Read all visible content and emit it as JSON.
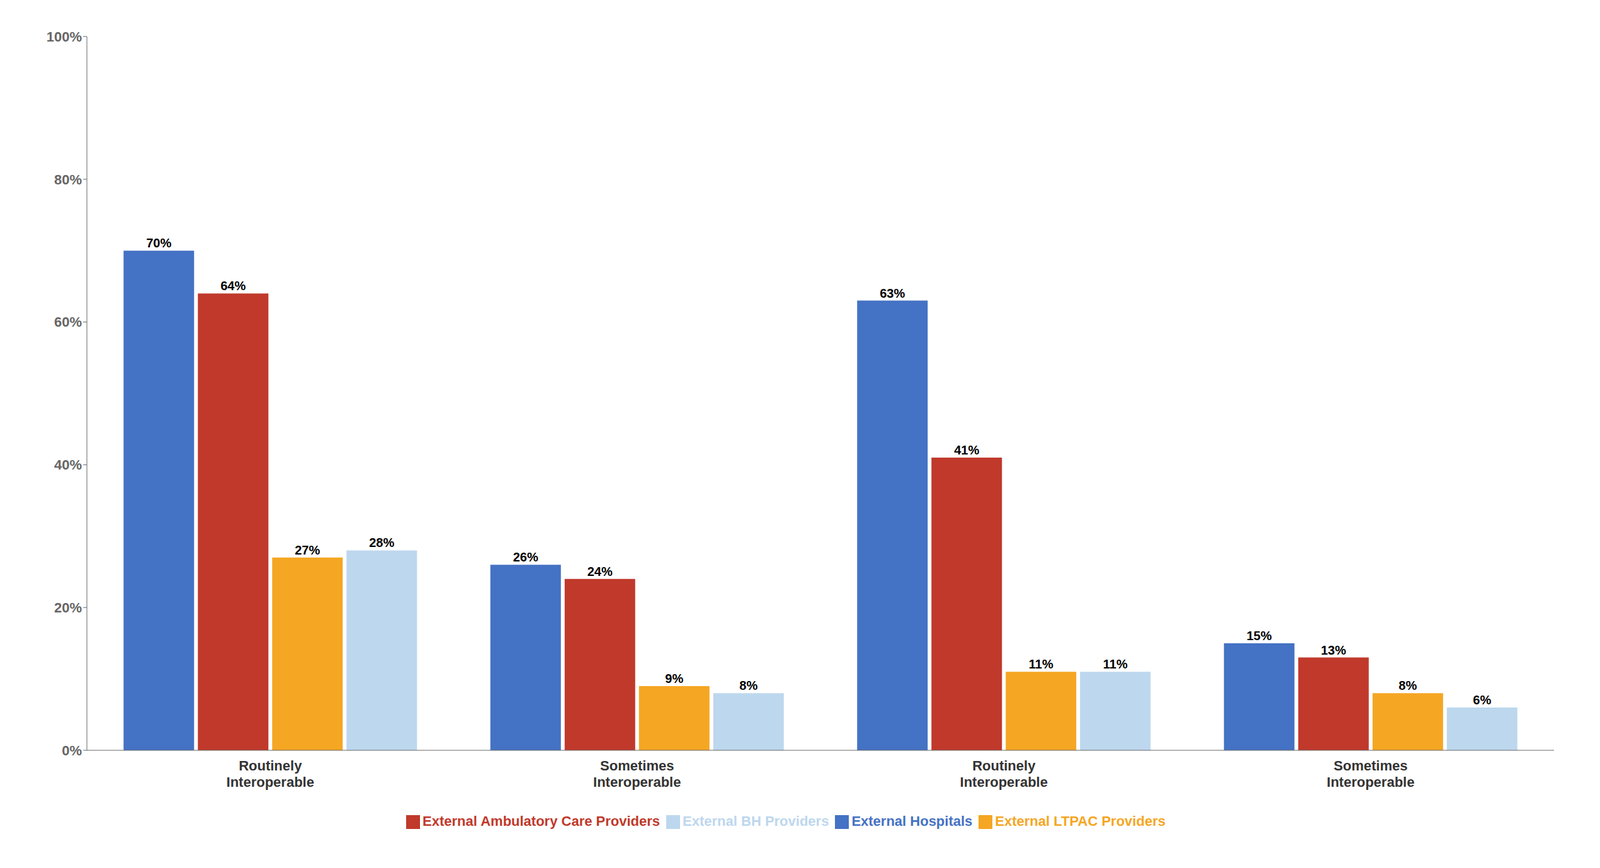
{
  "chart_data": {
    "type": "bar",
    "categories": [
      "Routinely\nInteroperable",
      "Sometimes\nInteroperable",
      "Routinely\nInteroperable",
      "Sometimes\nInteroperable"
    ],
    "series": [
      {
        "name": "External Hospitals",
        "color": "#4472C4",
        "values": [
          70,
          26,
          63,
          15
        ],
        "value_labels": [
          "70%",
          "26%",
          "63%",
          "15%"
        ]
      },
      {
        "name": "External Ambulatory Care Providers",
        "color": "#C0392B",
        "values": [
          64,
          24,
          41,
          13
        ],
        "value_labels": [
          "64%",
          "24%",
          "41%",
          "13%"
        ]
      },
      {
        "name": "External LTPAC Providers",
        "color": "#F5A623",
        "values": [
          27,
          9,
          11,
          8
        ],
        "value_labels": [
          "27%",
          "9%",
          "11%",
          "8%"
        ]
      },
      {
        "name": "External BH Providers",
        "color": "#BDD7EE",
        "values": [
          28,
          8,
          11,
          6
        ],
        "value_labels": [
          "28%",
          "8%",
          "11%",
          "6%"
        ]
      }
    ],
    "ylim": [
      0,
      100
    ],
    "yticks": [
      {
        "value": 0,
        "label": "0%"
      },
      {
        "value": 20,
        "label": "20%"
      },
      {
        "value": 40,
        "label": "40%"
      },
      {
        "value": 60,
        "label": "60%"
      },
      {
        "value": 80,
        "label": "80%"
      },
      {
        "value": 100,
        "label": "100%"
      }
    ],
    "data_labels": true,
    "grid": false,
    "legend": "bottom"
  }
}
